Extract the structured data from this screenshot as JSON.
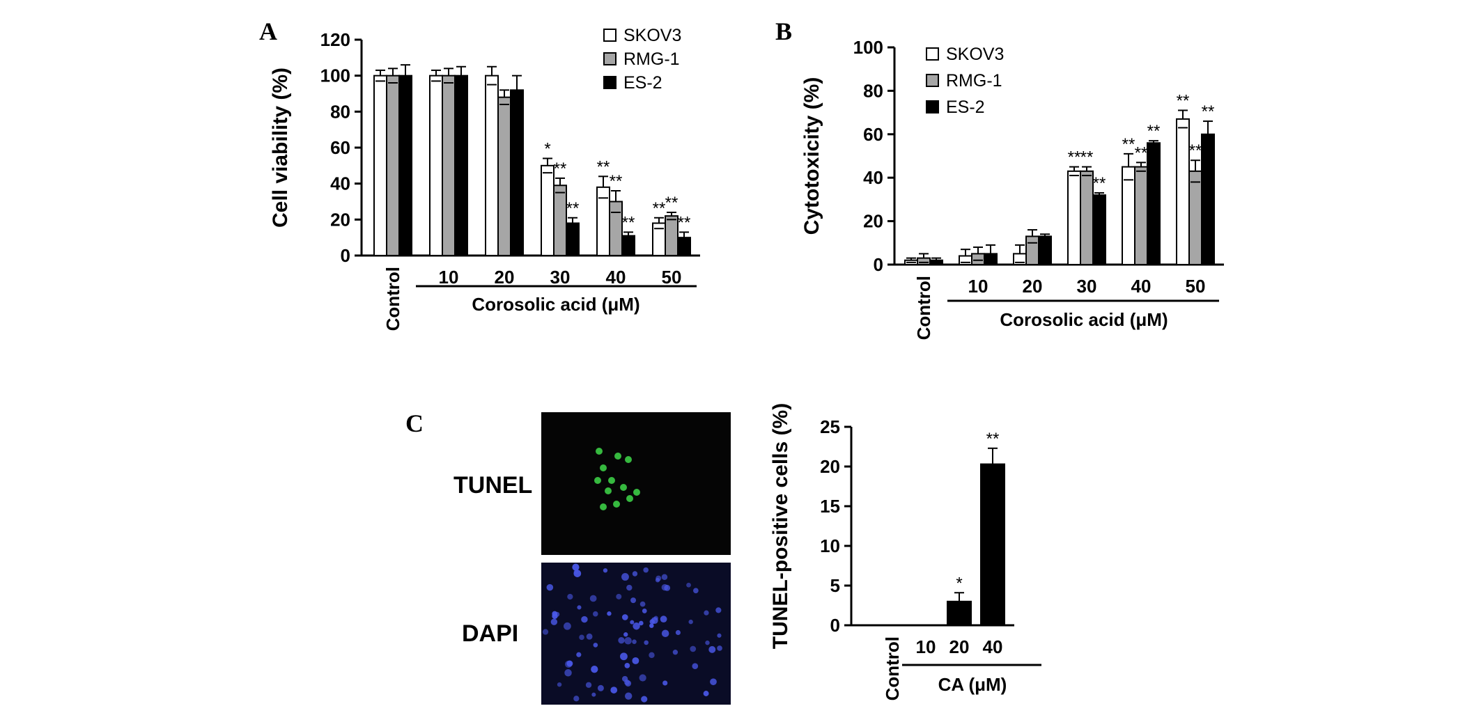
{
  "panels": {
    "A": "A",
    "B": "B",
    "C": "C"
  },
  "colors": {
    "SKOV3": "#ffffff",
    "RMG-1": "#a6a6a6",
    "ES-2": "#000000",
    "tunel_image_bg": "#050505",
    "tunel_cell": "#3fd94a",
    "dapi_image_bg": "#0a0c26",
    "dapi_cell": "#4a58e8"
  },
  "microscopy": {
    "tunel_label": "TUNEL",
    "dapi_label": "DAPI"
  },
  "chart_data": [
    {
      "id": "A",
      "type": "bar",
      "ylabel": "Cell viability (%)",
      "xlabel": "Corosolic acid (μM)",
      "ylim": [
        0,
        120
      ],
      "yticks": [
        0,
        20,
        40,
        60,
        80,
        100,
        120
      ],
      "categories": [
        "Control",
        "10",
        "20",
        "30",
        "40",
        "50"
      ],
      "legend_position": "top-right",
      "series": [
        {
          "name": "SKOV3",
          "values": [
            100,
            100,
            100,
            50,
            38,
            18
          ],
          "errors": [
            3,
            3,
            5,
            4,
            6,
            3
          ],
          "sig": [
            "",
            "",
            "",
            "*",
            "**",
            "**"
          ]
        },
        {
          "name": "RMG-1",
          "values": [
            100,
            100,
            88,
            39,
            30,
            22
          ],
          "errors": [
            4,
            4,
            4,
            4,
            6,
            2
          ],
          "sig": [
            "",
            "",
            "",
            "**",
            "**",
            "**"
          ]
        },
        {
          "name": "ES-2",
          "values": [
            100,
            100,
            92,
            18,
            11,
            10
          ],
          "errors": [
            6,
            5,
            8,
            3,
            2,
            3
          ],
          "sig": [
            "",
            "",
            "",
            "**",
            "**",
            "**"
          ]
        }
      ]
    },
    {
      "id": "B",
      "type": "bar",
      "ylabel": "Cytotoxicity (%)",
      "xlabel": "Corosolic acid (μM)",
      "ylim": [
        0,
        100
      ],
      "yticks": [
        0,
        20,
        40,
        60,
        80,
        100
      ],
      "categories": [
        "Control",
        "10",
        "20",
        "30",
        "40",
        "50"
      ],
      "legend_position": "top-left",
      "series": [
        {
          "name": "SKOV3",
          "values": [
            2,
            4,
            5,
            43,
            45,
            67
          ],
          "errors": [
            1,
            3,
            4,
            2,
            6,
            4
          ],
          "sig": [
            "",
            "",
            "",
            "**",
            "**",
            "**"
          ]
        },
        {
          "name": "RMG-1",
          "values": [
            3,
            5,
            13,
            43,
            45,
            43
          ],
          "errors": [
            2,
            3,
            3,
            2,
            2,
            5
          ],
          "sig": [
            "",
            "",
            "",
            "**",
            "**",
            "**"
          ]
        },
        {
          "name": "ES-2",
          "values": [
            2,
            5,
            13,
            32,
            56,
            60
          ],
          "errors": [
            1,
            4,
            1,
            1,
            1,
            6
          ],
          "sig": [
            "",
            "",
            "",
            "**",
            "**",
            "**"
          ]
        }
      ]
    },
    {
      "id": "C",
      "type": "bar",
      "ylabel": "TUNEL-positive cells (%)",
      "xlabel": "CA (μM)",
      "ylim": [
        0,
        25
      ],
      "yticks": [
        0,
        5,
        10,
        15,
        20,
        25
      ],
      "categories": [
        "Control",
        "10",
        "20",
        "40"
      ],
      "series": [
        {
          "name": "",
          "values": [
            0,
            0,
            3,
            20.3
          ],
          "errors": [
            0,
            0,
            1.1,
            2
          ],
          "sig": [
            "",
            "",
            "*",
            "**"
          ]
        }
      ]
    }
  ]
}
